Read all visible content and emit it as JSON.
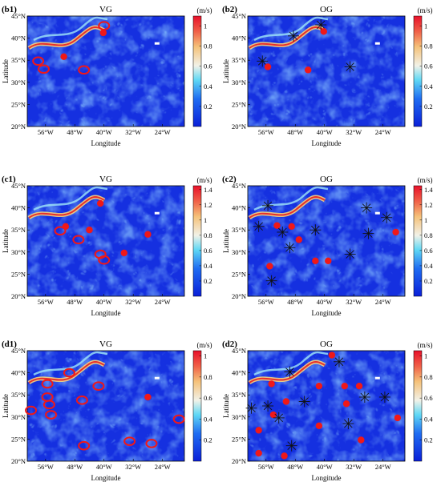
{
  "chart_data": [
    {
      "id": "b1",
      "panel_label": "(b1)",
      "title": "VG",
      "type": "heatmap",
      "xlabel": "Longitude",
      "ylabel": "Latitude",
      "xticks": [
        "56°W",
        "48°W",
        "40°W",
        "32°W",
        "24°W"
      ],
      "yticks": [
        "20°N",
        "25°N",
        "30°N",
        "35°N",
        "40°N",
        "45°N"
      ],
      "xlim": [
        -61,
        -18
      ],
      "ylim": [
        20,
        45
      ],
      "colorbar": {
        "unit": "(m/s)",
        "ticks": [
          "0.2",
          "0.4",
          "0.6",
          "0.8",
          "1"
        ],
        "max": 1.1
      },
      "markers": [
        {
          "kind": "ring",
          "lon": -58.0,
          "lat": 34.8
        },
        {
          "kind": "ring",
          "lon": -56.5,
          "lat": 33.0
        },
        {
          "kind": "dot",
          "lon": -51.0,
          "lat": 35.8
        },
        {
          "kind": "ring",
          "lon": -45.5,
          "lat": 32.8
        },
        {
          "kind": "ring",
          "lon": -40.0,
          "lat": 42.8
        },
        {
          "kind": "dot",
          "lon": -40.2,
          "lat": 41.2
        }
      ]
    },
    {
      "id": "b2",
      "panel_label": "(b2)",
      "title": "OG",
      "type": "heatmap",
      "xlabel": "Longitude",
      "ylabel": "Latitude",
      "xticks": [
        "56°W",
        "48°W",
        "40°W",
        "32°W",
        "24°W"
      ],
      "yticks": [
        "20°N",
        "25°N",
        "30°N",
        "35°N",
        "40°N",
        "45°N"
      ],
      "xlim": [
        -61,
        -18
      ],
      "ylim": [
        20,
        45
      ],
      "colorbar": {
        "unit": "(m/s)",
        "ticks": [
          "0.2",
          "0.4",
          "0.6",
          "0.8",
          "1"
        ],
        "max": 1.1
      },
      "markers": [
        {
          "kind": "star",
          "lon": -57.0,
          "lat": 34.8
        },
        {
          "kind": "dot",
          "lon": -55.5,
          "lat": 33.5
        },
        {
          "kind": "star",
          "lon": -48.5,
          "lat": 40.5
        },
        {
          "kind": "star",
          "lon": -41.0,
          "lat": 43.0
        },
        {
          "kind": "dot",
          "lon": -40.2,
          "lat": 41.5
        },
        {
          "kind": "dot",
          "lon": -44.5,
          "lat": 32.8
        },
        {
          "kind": "star",
          "lon": -33.0,
          "lat": 33.5
        }
      ]
    },
    {
      "id": "c1",
      "panel_label": "(c1)",
      "title": "VG",
      "type": "heatmap",
      "xlabel": "Longitude",
      "ylabel": "Latitude",
      "xticks": [
        "56°W",
        "48°W",
        "40°W",
        "32°W",
        "24°W"
      ],
      "yticks": [
        "20°N",
        "25°N",
        "30°N",
        "35°N",
        "40°N",
        "45°N"
      ],
      "xlim": [
        -61,
        -18
      ],
      "ylim": [
        20,
        45
      ],
      "colorbar": {
        "unit": "(m/s)",
        "ticks": [
          "0.2",
          "0.4",
          "0.6",
          "0.8",
          "1",
          "1.2",
          "1.4"
        ],
        "max": 1.45
      },
      "markers": [
        {
          "kind": "ring",
          "lon": -52.0,
          "lat": 34.8
        },
        {
          "kind": "dot",
          "lon": -50.5,
          "lat": 35.8
        },
        {
          "kind": "dot",
          "lon": -44.0,
          "lat": 35.0
        },
        {
          "kind": "ring",
          "lon": -47.0,
          "lat": 32.8
        },
        {
          "kind": "dot",
          "lon": -41.0,
          "lat": 41.0
        },
        {
          "kind": "ring",
          "lon": -41.0,
          "lat": 29.5
        },
        {
          "kind": "ring",
          "lon": -40.0,
          "lat": 28.2
        },
        {
          "kind": "dot",
          "lon": -34.5,
          "lat": 29.8
        },
        {
          "kind": "dot",
          "lon": -28.0,
          "lat": 34.0
        }
      ]
    },
    {
      "id": "c2",
      "panel_label": "(c2)",
      "title": "OG",
      "type": "heatmap",
      "xlabel": "Longitude",
      "ylabel": "Latitude",
      "xticks": [
        "56°W",
        "48°W",
        "40°W",
        "32°W",
        "24°W"
      ],
      "yticks": [
        "20°N",
        "25°N",
        "30°N",
        "35°N",
        "40°N",
        "45°N"
      ],
      "xlim": [
        -61,
        -18
      ],
      "ylim": [
        20,
        45
      ],
      "colorbar": {
        "unit": "(m/s)",
        "ticks": [
          "0.2",
          "0.4",
          "0.6",
          "0.8",
          "1",
          "1.2",
          "1.4"
        ],
        "max": 1.45
      },
      "markers": [
        {
          "kind": "star",
          "lon": -58.0,
          "lat": 35.8
        },
        {
          "kind": "star",
          "lon": -55.5,
          "lat": 40.5
        },
        {
          "kind": "dot",
          "lon": -53.0,
          "lat": 36.0
        },
        {
          "kind": "star",
          "lon": -51.5,
          "lat": 34.5
        },
        {
          "kind": "dot",
          "lon": -49.0,
          "lat": 35.8
        },
        {
          "kind": "star",
          "lon": -49.5,
          "lat": 31.0
        },
        {
          "kind": "dot",
          "lon": -47.0,
          "lat": 32.8
        },
        {
          "kind": "star",
          "lon": -42.5,
          "lat": 35.0
        },
        {
          "kind": "dot",
          "lon": -55.0,
          "lat": 26.8
        },
        {
          "kind": "star",
          "lon": -54.5,
          "lat": 23.5
        },
        {
          "kind": "dot",
          "lon": -42.5,
          "lat": 28.0
        },
        {
          "kind": "dot",
          "lon": -39.0,
          "lat": 28.0
        },
        {
          "kind": "star",
          "lon": -33.0,
          "lat": 29.5
        },
        {
          "kind": "star",
          "lon": -28.5,
          "lat": 40.0
        },
        {
          "kind": "star",
          "lon": -28.0,
          "lat": 34.2
        },
        {
          "kind": "star",
          "lon": -23.0,
          "lat": 37.8
        },
        {
          "kind": "dot",
          "lon": -20.5,
          "lat": 34.5
        }
      ]
    },
    {
      "id": "d1",
      "panel_label": "(d1)",
      "title": "VG",
      "type": "heatmap",
      "xlabel": "Longitude",
      "ylabel": "Latitude",
      "xticks": [
        "56°W",
        "48°W",
        "40°W",
        "32°W",
        "24°W"
      ],
      "yticks": [
        "20°N",
        "25°N",
        "30°N",
        "35°N",
        "40°N",
        "45°N"
      ],
      "xlim": [
        -61,
        -18
      ],
      "ylim": [
        20,
        45
      ],
      "colorbar": {
        "unit": "(m/s)",
        "ticks": [
          "0.2",
          "0.4",
          "0.6",
          "0.8",
          "1"
        ],
        "max": 1.05
      },
      "markers": [
        {
          "kind": "ring",
          "lon": -60.0,
          "lat": 31.5
        },
        {
          "kind": "ring",
          "lon": -55.5,
          "lat": 37.5
        },
        {
          "kind": "ring",
          "lon": -55.5,
          "lat": 34.5
        },
        {
          "kind": "ring",
          "lon": -55.0,
          "lat": 32.8
        },
        {
          "kind": "ring",
          "lon": -54.5,
          "lat": 30.5
        },
        {
          "kind": "ring",
          "lon": -49.5,
          "lat": 40.0
        },
        {
          "kind": "ring",
          "lon": -46.0,
          "lat": 33.8
        },
        {
          "kind": "ring",
          "lon": -41.5,
          "lat": 37.0
        },
        {
          "kind": "ring",
          "lon": -45.5,
          "lat": 23.5
        },
        {
          "kind": "ring",
          "lon": -33.0,
          "lat": 24.5
        },
        {
          "kind": "ring",
          "lon": -27.0,
          "lat": 24.0
        },
        {
          "kind": "dot",
          "lon": -28.0,
          "lat": 34.5
        },
        {
          "kind": "ring",
          "lon": -19.5,
          "lat": 29.5
        }
      ]
    },
    {
      "id": "d2",
      "panel_label": "(d2)",
      "title": "OG",
      "type": "heatmap",
      "xlabel": "Longitude",
      "ylabel": "Latitude",
      "xticks": [
        "56°W",
        "48°W",
        "40°W",
        "32°W",
        "24°W"
      ],
      "yticks": [
        "20°N",
        "25°N",
        "30°N",
        "35°N",
        "40°N",
        "45°N"
      ],
      "xlim": [
        -61,
        -18
      ],
      "ylim": [
        20,
        45
      ],
      "colorbar": {
        "unit": "(m/s)",
        "ticks": [
          "0.2",
          "0.4",
          "0.6",
          "0.8",
          "1"
        ],
        "max": 1.05
      },
      "markers": [
        {
          "kind": "star",
          "lon": -60.0,
          "lat": 32.0
        },
        {
          "kind": "star",
          "lon": -55.5,
          "lat": 32.5
        },
        {
          "kind": "dot",
          "lon": -58.0,
          "lat": 27.0
        },
        {
          "kind": "dot",
          "lon": -58.0,
          "lat": 21.8
        },
        {
          "kind": "dot",
          "lon": -54.5,
          "lat": 37.5
        },
        {
          "kind": "dot",
          "lon": -54.0,
          "lat": 30.5
        },
        {
          "kind": "star",
          "lon": -52.5,
          "lat": 29.8
        },
        {
          "kind": "dot",
          "lon": -51.0,
          "lat": 21.2
        },
        {
          "kind": "star",
          "lon": -49.0,
          "lat": 23.5
        },
        {
          "kind": "dot",
          "lon": -50.5,
          "lat": 33.5
        },
        {
          "kind": "star",
          "lon": -49.5,
          "lat": 40.2
        },
        {
          "kind": "star",
          "lon": -45.5,
          "lat": 33.5
        },
        {
          "kind": "dot",
          "lon": -41.5,
          "lat": 37.0
        },
        {
          "kind": "dot",
          "lon": -41.5,
          "lat": 28.0
        },
        {
          "kind": "dot",
          "lon": -38.0,
          "lat": 44.0
        },
        {
          "kind": "star",
          "lon": -36.0,
          "lat": 42.5
        },
        {
          "kind": "dot",
          "lon": -34.5,
          "lat": 37.0
        },
        {
          "kind": "dot",
          "lon": -34.0,
          "lat": 33.0
        },
        {
          "kind": "star",
          "lon": -33.5,
          "lat": 28.5
        },
        {
          "kind": "dot",
          "lon": -30.5,
          "lat": 37.0
        },
        {
          "kind": "star",
          "lon": -29.0,
          "lat": 34.5
        },
        {
          "kind": "dot",
          "lon": -30.0,
          "lat": 24.8
        },
        {
          "kind": "star",
          "lon": -23.5,
          "lat": 34.5
        },
        {
          "kind": "dot",
          "lon": -20.0,
          "lat": 29.8
        }
      ]
    }
  ]
}
